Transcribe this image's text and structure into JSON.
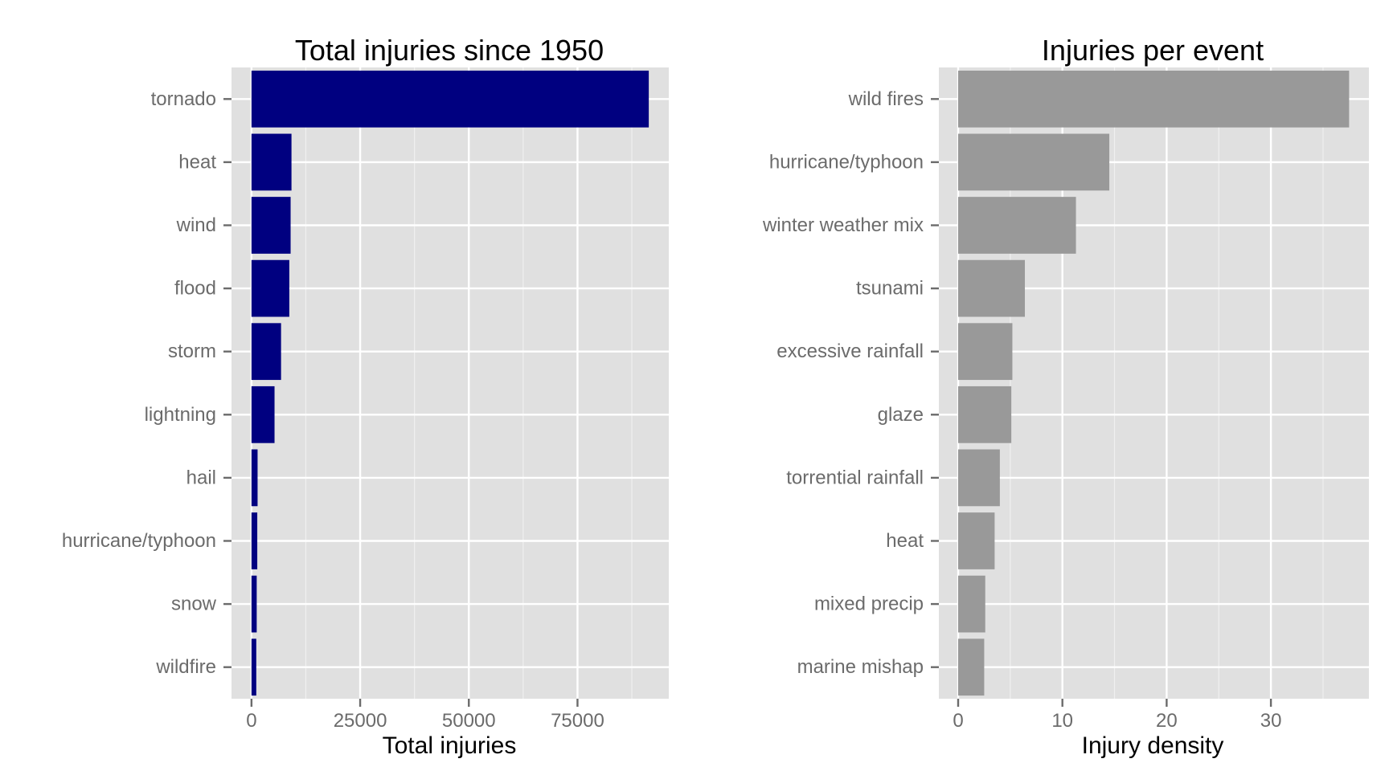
{
  "chart_data": [
    {
      "type": "bar",
      "orientation": "horizontal",
      "title": "Total injuries since 1950",
      "xlabel": "Total injuries",
      "ylabel": "",
      "categories": [
        "tornado",
        "heat",
        "wind",
        "flood",
        "storm",
        "lightning",
        "hail",
        "hurricane/typhoon",
        "snow",
        "wildfire"
      ],
      "values": [
        91400,
        9200,
        9000,
        8700,
        6800,
        5300,
        1400,
        1330,
        1200,
        1100
      ],
      "xlim": [
        -4600,
        96000
      ],
      "xticks": [
        0,
        25000,
        50000,
        75000
      ],
      "xtick_labels": [
        "0",
        "25000",
        "50000",
        "75000"
      ],
      "bar_color": "#000080",
      "grid": true,
      "legend": "none"
    },
    {
      "type": "bar",
      "orientation": "horizontal",
      "title": "Injuries per event",
      "xlabel": "Injury density",
      "ylabel": "",
      "categories": [
        "wild fires",
        "hurricane/typhoon",
        "winter weather mix",
        "tsunami",
        "excessive rainfall",
        "glaze",
        "torrential rainfall",
        "heat",
        "mixed precip",
        "marine mishap"
      ],
      "values": [
        37.5,
        14.5,
        11.3,
        6.4,
        5.2,
        5.1,
        4.0,
        3.5,
        2.6,
        2.5
      ],
      "xlim": [
        -1.85,
        39.4
      ],
      "xticks": [
        0,
        10,
        20,
        30
      ],
      "xtick_labels": [
        "0",
        "10",
        "20",
        "30"
      ],
      "bar_color": "#999999",
      "grid": true,
      "legend": "none"
    }
  ]
}
